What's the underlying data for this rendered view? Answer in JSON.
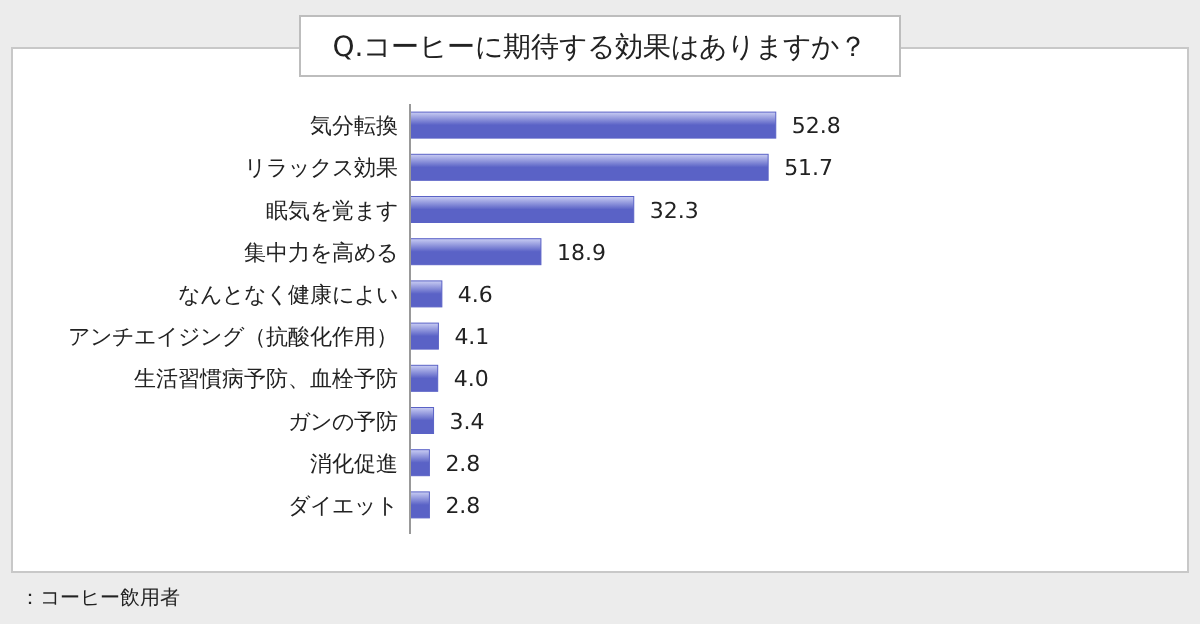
{
  "chart_data": {
    "type": "bar",
    "orientation": "horizontal",
    "title": "Q.コーヒーに期待する効果はありますか？",
    "categories": [
      "気分転換",
      "リラックス効果",
      "眠気を覚ます",
      "集中力を高める",
      "なんとなく健康によい",
      "アンチエイジング（抗酸化作用）",
      "生活習慣病予防、血栓予防",
      "ガンの予防",
      "消化促進",
      "ダイエット"
    ],
    "values": [
      52.8,
      51.7,
      32.3,
      18.9,
      4.6,
      4.1,
      4.0,
      3.4,
      2.8,
      2.8
    ],
    "color": "#5a62c6",
    "value_labels": [
      "52.8",
      "51.7",
      "32.3",
      "18.9",
      "4.6",
      "4.1",
      "4.0",
      "3.4",
      "2.8",
      "2.8"
    ],
    "annotations": [
      "：コーヒー飲用者"
    ]
  }
}
